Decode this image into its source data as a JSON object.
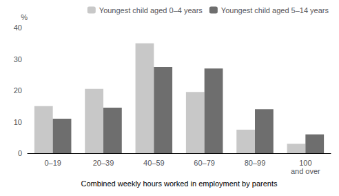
{
  "chart_data": {
    "type": "bar",
    "categories": [
      "0–19",
      "20–39",
      "40–59",
      "60–79",
      "80–99",
      "100\nand over"
    ],
    "series": [
      {
        "name": "Youngest child aged 0–4 years",
        "color": "#c8c8c8",
        "values": [
          15,
          20.5,
          35,
          19.5,
          7.5,
          3
        ]
      },
      {
        "name": "Youngest child aged 5–14 years",
        "color": "#6e6e6e",
        "values": [
          11,
          14.5,
          27.5,
          27,
          14,
          6
        ]
      }
    ],
    "xlabel": "Combined weekly hours worked in employment by parents",
    "ylabel": "%",
    "ylim": [
      0,
      40
    ],
    "yticks": [
      0,
      10,
      20,
      30,
      40
    ],
    "grid": false,
    "legend": "upper right"
  }
}
